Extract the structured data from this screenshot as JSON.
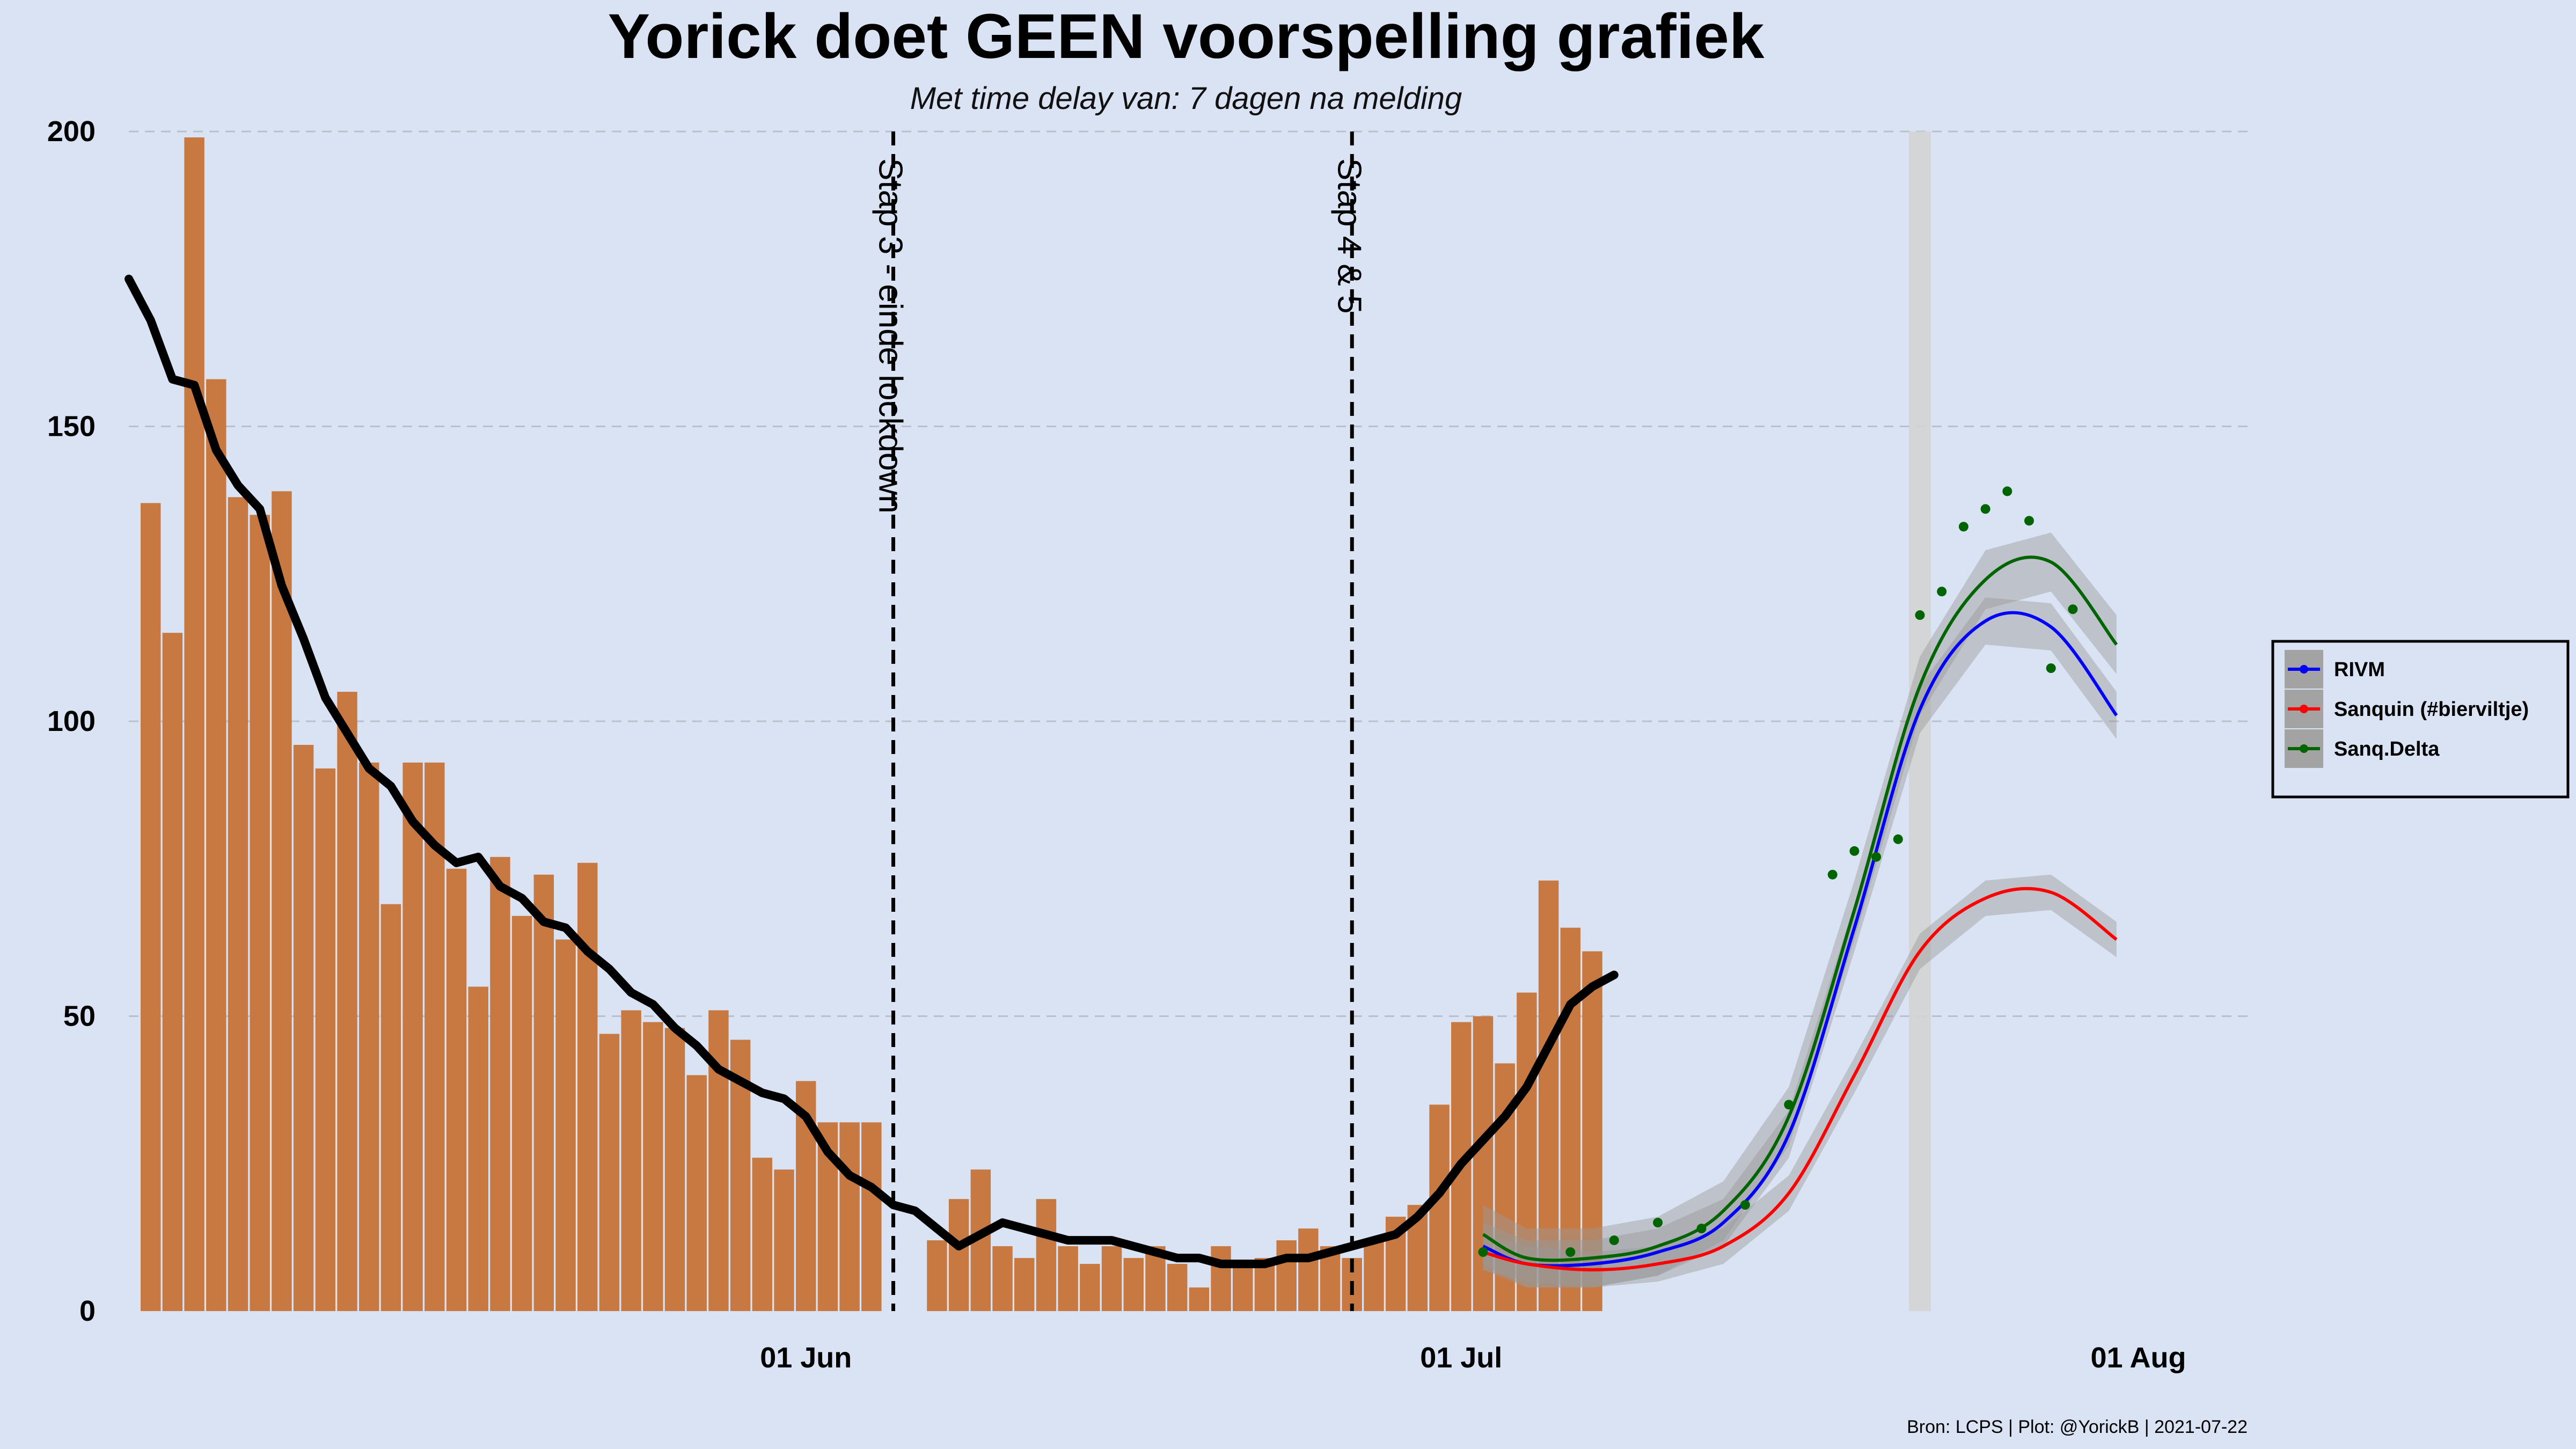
{
  "chart_data": {
    "type": "bar",
    "title": "Yorick doet GEEN voorspelling grafiek",
    "subtitle": "Met time delay van: 7 dagen na melding",
    "caption": "Bron: LCPS | Plot: @YorickB |  2021-07-22",
    "x_range": [
      "2021-05-01",
      "2021-08-06"
    ],
    "ylim": [
      0,
      200
    ],
    "y_ticks": [
      0,
      50,
      100,
      150,
      200
    ],
    "y_tick_labels": [
      "0",
      "50",
      "100",
      "150",
      "200"
    ],
    "x_ticks": [
      {
        "date": "2021-06-01",
        "label": "01 Jun"
      },
      {
        "date": "2021-07-01",
        "label": "01 Jul"
      },
      {
        "date": "2021-08-01",
        "label": "01 Aug"
      }
    ],
    "grid": "horizontal dashed",
    "bar_color": "#c87941",
    "bar_start_date": "2021-05-02",
    "bars": [
      137,
      115,
      199,
      158,
      138,
      135,
      139,
      96,
      92,
      105,
      93,
      69,
      93,
      93,
      75,
      55,
      77,
      67,
      74,
      63,
      76,
      47,
      51,
      49,
      48,
      40,
      51,
      46,
      26,
      24,
      39,
      32,
      32,
      32,
      null,
      null,
      12,
      19,
      24,
      11,
      9,
      19,
      11,
      8,
      11,
      9,
      11,
      8,
      4,
      11,
      8,
      9,
      12,
      14,
      11,
      9,
      12,
      16,
      18,
      35,
      49,
      50,
      42,
      54,
      73,
      65,
      61
    ],
    "avg_start_date": "2021-05-01",
    "avg_line": [
      175,
      168,
      158,
      157,
      146,
      140,
      136,
      123,
      114,
      104,
      98,
      92,
      89,
      83,
      79,
      76,
      77,
      72,
      70,
      66,
      65,
      61,
      58,
      54,
      52,
      48,
      45,
      41,
      39,
      37,
      36,
      33,
      27,
      23,
      21,
      18,
      17,
      14,
      11,
      13,
      15,
      14,
      13,
      12,
      12,
      12,
      11,
      10,
      9,
      9,
      8,
      8,
      8,
      9,
      9,
      10,
      11,
      12,
      13,
      16,
      20,
      25,
      29,
      33,
      38,
      45,
      52,
      55,
      57
    ],
    "event_lines": [
      {
        "date": "2021-06-05",
        "label": "Stap 3 - einde lockdown"
      },
      {
        "date": "2021-06-26",
        "label": "Stap 4 & 5"
      }
    ],
    "shaded_date": "2021-07-22",
    "legend": {
      "position": "right",
      "entries": [
        "RIVM",
        "Sanquin (#bierviltje)",
        "Sanq.Delta"
      ]
    },
    "series": [
      {
        "name": "RIVM",
        "color": "#0000ff",
        "x": [
          "2021-07-02",
          "2021-07-04",
          "2021-07-07",
          "2021-07-10",
          "2021-07-13",
          "2021-07-16",
          "2021-07-19",
          "2021-07-22",
          "2021-07-25",
          "2021-07-28",
          "2021-07-31"
        ],
        "y": [
          11,
          8,
          8,
          10,
          15,
          30,
          65,
          102,
          117,
          116,
          101
        ],
        "band": 4
      },
      {
        "name": "Sanquin (#bierviltje)",
        "color": "#ff0000",
        "x": [
          "2021-07-02",
          "2021-07-04",
          "2021-07-07",
          "2021-07-10",
          "2021-07-13",
          "2021-07-16",
          "2021-07-19",
          "2021-07-22",
          "2021-07-25",
          "2021-07-28",
          "2021-07-31"
        ],
        "y": [
          10,
          8,
          7,
          8,
          11,
          20,
          40,
          61,
          70,
          71,
          63
        ],
        "band": 3
      },
      {
        "name": "Sanq.Delta",
        "color": "#006400",
        "x": [
          "2021-07-02",
          "2021-07-04",
          "2021-07-07",
          "2021-07-10",
          "2021-07-13",
          "2021-07-16",
          "2021-07-19",
          "2021-07-22",
          "2021-07-25",
          "2021-07-28",
          "2021-07-31"
        ],
        "y": [
          13,
          9,
          9,
          11,
          17,
          33,
          68,
          106,
          124,
          127,
          113
        ],
        "band": 5,
        "points_x": [
          "2021-07-02",
          "2021-07-06",
          "2021-07-08",
          "2021-07-10",
          "2021-07-12",
          "2021-07-14",
          "2021-07-16",
          "2021-07-18",
          "2021-07-19",
          "2021-07-20",
          "2021-07-21",
          "2021-07-22",
          "2021-07-23",
          "2021-07-24",
          "2021-07-25",
          "2021-07-26",
          "2021-07-27",
          "2021-07-28",
          "2021-07-29"
        ],
        "points_y": [
          10,
          10,
          12,
          15,
          14,
          18,
          35,
          74,
          78,
          77,
          80,
          118,
          122,
          133,
          136,
          139,
          134,
          109,
          119
        ]
      }
    ]
  }
}
